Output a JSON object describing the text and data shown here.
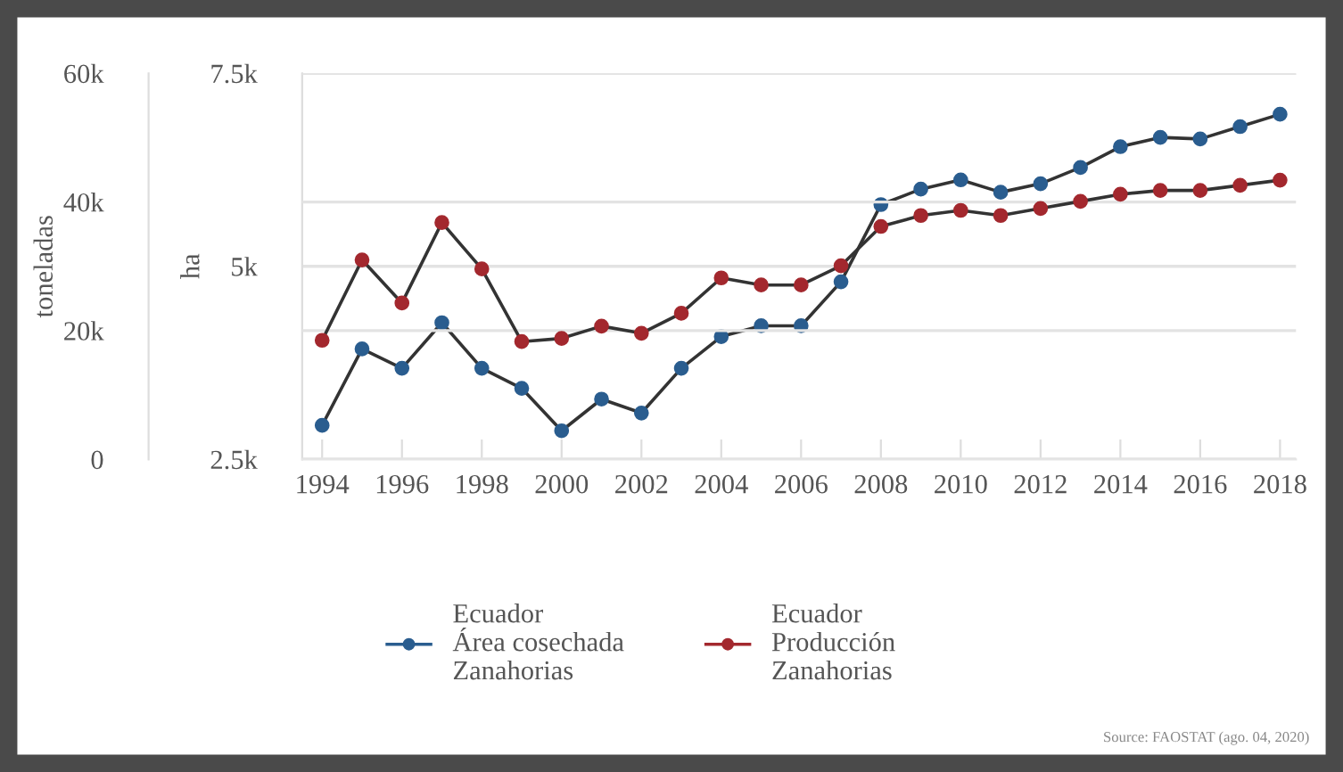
{
  "chart_data": {
    "type": "line",
    "x": [
      1994,
      1995,
      1996,
      1997,
      1998,
      1999,
      2000,
      2001,
      2002,
      2003,
      2004,
      2005,
      2006,
      2007,
      2008,
      2009,
      2010,
      2011,
      2012,
      2013,
      2014,
      2015,
      2016,
      2017,
      2018
    ],
    "series": [
      {
        "name": "Ecuador\nÁrea cosechada\nZanahorias",
        "color": "#2a5d8f",
        "values": [
          2940,
          3930,
          3680,
          4270,
          3680,
          3420,
          2870,
          3280,
          3100,
          3680,
          4090,
          4230,
          4230,
          4800,
          5800,
          6000,
          6120,
          5960,
          6070,
          6280,
          6550,
          6670,
          6650,
          6810,
          6970
        ]
      },
      {
        "name": "Ecuador\nProducción\nZanahorias",
        "color": "#a3282e",
        "axis": "y2",
        "values": [
          18500,
          31000,
          24300,
          36800,
          29600,
          18300,
          18800,
          20700,
          19600,
          22700,
          28200,
          27100,
          27100,
          30100,
          36200,
          37900,
          38700,
          37900,
          39000,
          40100,
          41200,
          41800,
          41800,
          42600,
          43400
        ]
      }
    ],
    "ylabel": "ha",
    "y2label": "toneladas",
    "xlim": [
      1993.5,
      2018.4
    ],
    "xticks": [
      1994,
      1996,
      1998,
      2000,
      2002,
      2004,
      2006,
      2008,
      2010,
      2012,
      2014,
      2016,
      2018
    ],
    "ylim": [
      2500,
      7500
    ],
    "yticks": [
      {
        "value": 2500,
        "label": "2.5k"
      },
      {
        "value": 5000,
        "label": "5k"
      },
      {
        "value": 7500,
        "label": "7.5k"
      }
    ],
    "y2lim": [
      0,
      60000
    ],
    "y2ticks": [
      {
        "value": 0,
        "label": "0"
      },
      {
        "value": 20000,
        "label": "20k"
      },
      {
        "value": 40000,
        "label": "40k"
      },
      {
        "value": 60000,
        "label": "60k"
      }
    ],
    "grid": "y",
    "legend": "bottom",
    "marker": "circle",
    "line_style": "solid",
    "annotations": [
      "Source: FAOSTAT (ago. 04, 2020)"
    ]
  }
}
